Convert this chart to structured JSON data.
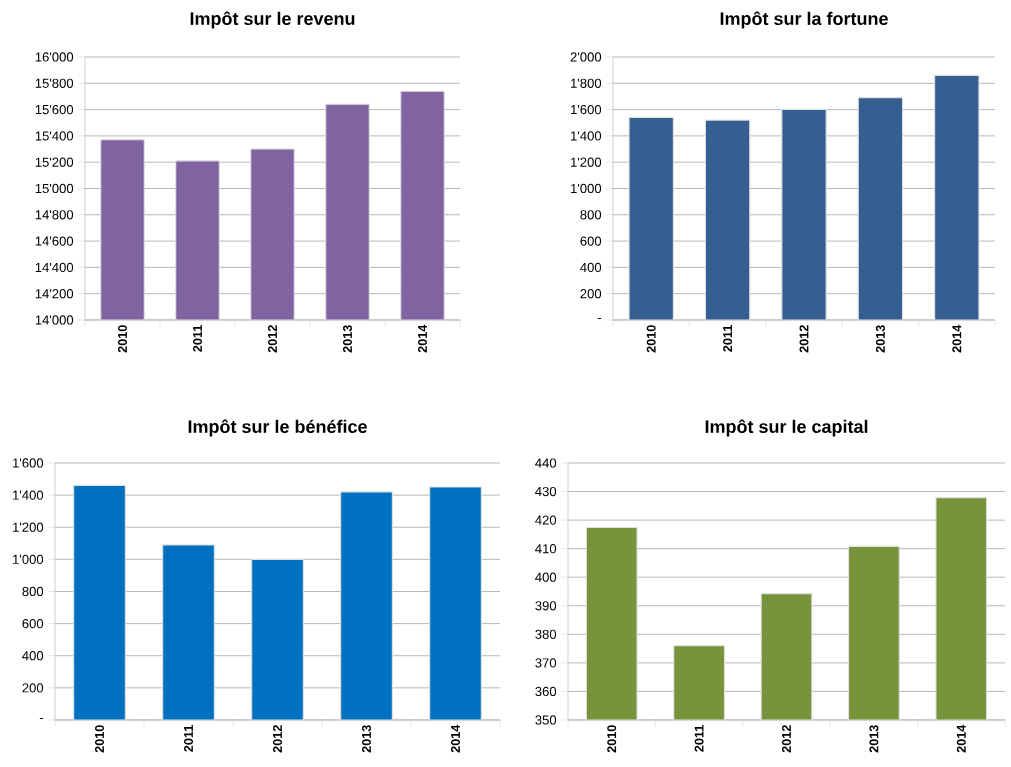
{
  "chart_data": [
    {
      "type": "bar",
      "title": "Impôt sur le revenu",
      "categories": [
        "2010",
        "2011",
        "2012",
        "2013",
        "2014"
      ],
      "values": [
        15370,
        15210,
        15300,
        15640,
        15740
      ],
      "color": "#8064a2",
      "ylim": [
        14000,
        16000
      ],
      "yticks": [
        {
          "value": 14000,
          "label": "14'000"
        },
        {
          "value": 14200,
          "label": "14'200"
        },
        {
          "value": 14400,
          "label": "14'400"
        },
        {
          "value": 14600,
          "label": "14'600"
        },
        {
          "value": 14800,
          "label": "14'800"
        },
        {
          "value": 15000,
          "label": "15'000"
        },
        {
          "value": 15200,
          "label": "15'200"
        },
        {
          "value": 15400,
          "label": "15'400"
        },
        {
          "value": 15600,
          "label": "15'600"
        },
        {
          "value": 15800,
          "label": "15'800"
        },
        {
          "value": 16000,
          "label": "16'000"
        }
      ],
      "grid": "y"
    },
    {
      "type": "bar",
      "title": "Impôt sur la fortune",
      "categories": [
        "2010",
        "2011",
        "2012",
        "2013",
        "2014"
      ],
      "values": [
        1540,
        1520,
        1600,
        1690,
        1860
      ],
      "color": "#365f91",
      "ylim": [
        0,
        2000
      ],
      "yticks": [
        {
          "value": 0,
          "label": "-"
        },
        200,
        400,
        600,
        800,
        {
          "value": 1000,
          "label": "1'000"
        },
        {
          "value": 1200,
          "label": "1'200"
        },
        {
          "value": 1400,
          "label": "1'400"
        },
        {
          "value": 1600,
          "label": "1'600"
        },
        {
          "value": 1800,
          "label": "1'800"
        },
        {
          "value": 2000,
          "label": "2'000"
        }
      ],
      "grid": "y"
    },
    {
      "type": "bar",
      "title": "Impôt sur le bénéfice",
      "categories": [
        "2010",
        "2011",
        "2012",
        "2013",
        "2014"
      ],
      "values": [
        1460,
        1090,
        1000,
        1420,
        1450
      ],
      "color": "#0070c0",
      "ylim": [
        0,
        1600
      ],
      "yticks": [
        {
          "value": 0,
          "label": "-"
        },
        200,
        400,
        600,
        800,
        {
          "value": 1000,
          "label": "1'000"
        },
        {
          "value": 1200,
          "label": "1'200"
        },
        {
          "value": 1400,
          "label": "1'400"
        },
        {
          "value": 1600,
          "label": "1'600"
        }
      ],
      "grid": "y"
    },
    {
      "type": "bar",
      "title": "Impôt sur le capital",
      "categories": [
        "2010",
        "2011",
        "2012",
        "2013",
        "2014"
      ],
      "values": [
        417.4,
        376,
        394.2,
        410.8,
        427.8
      ],
      "color": "#77933c",
      "ylim": [
        350,
        440
      ],
      "yticks": [
        350,
        360,
        370,
        380,
        390,
        400,
        410,
        420,
        430,
        440
      ],
      "grid": "y"
    }
  ]
}
